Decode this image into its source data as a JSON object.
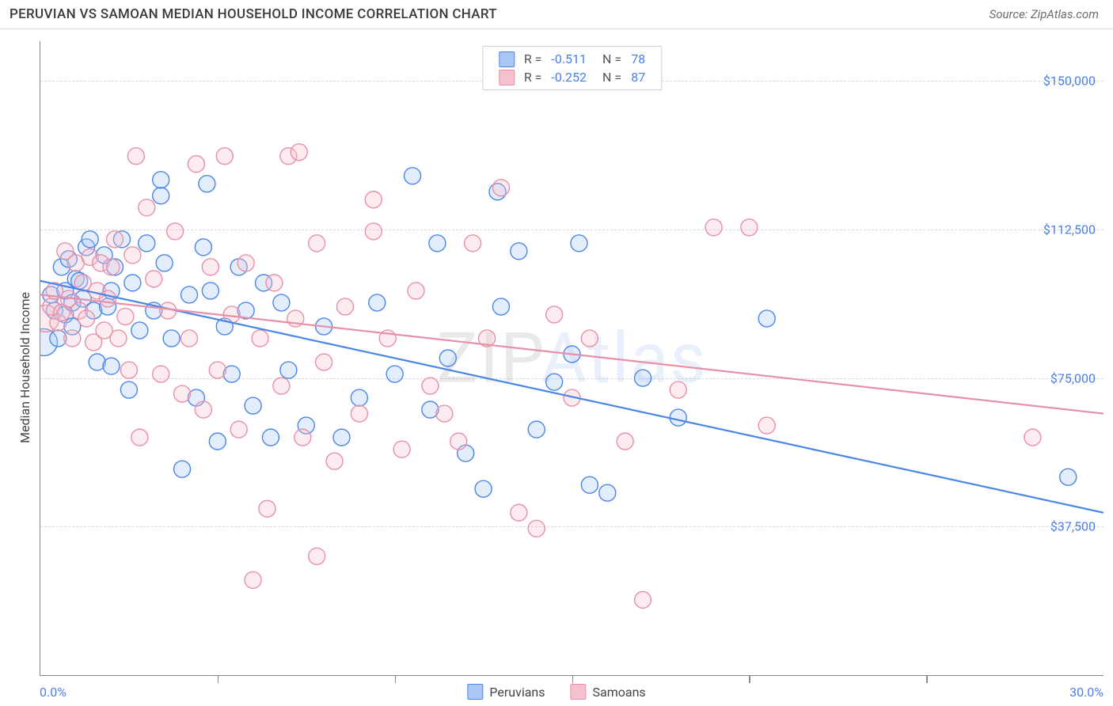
{
  "title": "PERUVIAN VS SAMOAN MEDIAN HOUSEHOLD INCOME CORRELATION CHART",
  "source": "Source: ZipAtlas.com",
  "watermark": {
    "parts": [
      "Z",
      "I",
      "P",
      "Atlas"
    ]
  },
  "chart": {
    "type": "scatter",
    "background_color": "#ffffff",
    "grid_color": "#d8d8d8",
    "axis_color": "#888888",
    "xlim": [
      0,
      30
    ],
    "ylim": [
      0,
      160000
    ],
    "ylabel": "Median Household Income",
    "ylabel_color": "#444444",
    "ylabel_fontsize": 16,
    "xtick_step": 5,
    "x_min_label": "0.0%",
    "x_max_label": "30.0%",
    "ytick_labels": [
      {
        "value": 37500,
        "label": "$37,500"
      },
      {
        "value": 75000,
        "label": "$75,000"
      },
      {
        "value": 112500,
        "label": "$112,500"
      },
      {
        "value": 150000,
        "label": "$150,000"
      }
    ],
    "tick_label_color": "#4a7fe8",
    "marker_radius": 10.5,
    "marker_radius_large": 17,
    "marker_stroke_width": 1.4,
    "marker_fill_opacity": 0.32,
    "line_width": 2.2,
    "series": [
      {
        "name": "Peruvians",
        "stroke": "#4a86e8",
        "fill": "#a9c6f5",
        "R": "-0.511",
        "N": "78",
        "regression": {
          "x1": 0,
          "y1": 99500,
          "x2": 30,
          "y2": 41000
        },
        "points": [
          [
            0.3,
            96000
          ],
          [
            0.4,
            92000
          ],
          [
            0.5,
            85000
          ],
          [
            0.6,
            103000
          ],
          [
            0.7,
            97000
          ],
          [
            0.7,
            91000
          ],
          [
            0.8,
            105000
          ],
          [
            0.9,
            94000
          ],
          [
            0.9,
            88000
          ],
          [
            1.0,
            100000
          ],
          [
            1.1,
            99500
          ],
          [
            1.2,
            95000
          ],
          [
            1.3,
            108000
          ],
          [
            1.4,
            110000
          ],
          [
            1.5,
            92000
          ],
          [
            1.6,
            79000
          ],
          [
            1.8,
            106000
          ],
          [
            1.9,
            93000
          ],
          [
            2.0,
            97000
          ],
          [
            2.1,
            103000
          ],
          [
            2.3,
            110000
          ],
          [
            2.0,
            78000
          ],
          [
            2.5,
            72000
          ],
          [
            2.6,
            99000
          ],
          [
            2.8,
            87000
          ],
          [
            3.0,
            109000
          ],
          [
            3.2,
            92000
          ],
          [
            3.4,
            121000
          ],
          [
            3.5,
            104000
          ],
          [
            3.7,
            85000
          ],
          [
            3.4,
            125000
          ],
          [
            4.7,
            124000
          ],
          [
            4.0,
            52000
          ],
          [
            4.2,
            96000
          ],
          [
            4.4,
            70000
          ],
          [
            4.6,
            108000
          ],
          [
            4.8,
            97000
          ],
          [
            5.0,
            59000
          ],
          [
            5.2,
            88000
          ],
          [
            5.4,
            76000
          ],
          [
            5.6,
            103000
          ],
          [
            5.8,
            92000
          ],
          [
            6.0,
            68000
          ],
          [
            6.3,
            99000
          ],
          [
            6.5,
            60000
          ],
          [
            6.8,
            94000
          ],
          [
            7.0,
            77000
          ],
          [
            7.5,
            63000
          ],
          [
            8.0,
            88000
          ],
          [
            8.5,
            60000
          ],
          [
            9.0,
            70000
          ],
          [
            9.5,
            94000
          ],
          [
            10.0,
            76000
          ],
          [
            10.5,
            126000
          ],
          [
            11.0,
            67000
          ],
          [
            11.5,
            80000
          ],
          [
            11.2,
            109000
          ],
          [
            12.0,
            56000
          ],
          [
            12.5,
            47000
          ],
          [
            13.0,
            93000
          ],
          [
            13.5,
            107000
          ],
          [
            12.9,
            122000
          ],
          [
            14.0,
            62000
          ],
          [
            14.5,
            74000
          ],
          [
            15.0,
            81000
          ],
          [
            15.2,
            109000
          ],
          [
            15.5,
            48000
          ],
          [
            16.0,
            46000
          ],
          [
            17.0,
            75000
          ],
          [
            18.0,
            65000
          ],
          [
            20.5,
            90000
          ],
          [
            29.0,
            50000
          ]
        ],
        "large_points": [
          [
            0.1,
            84000
          ]
        ]
      },
      {
        "name": "Samoans",
        "stroke": "#e890a8",
        "fill": "#f5c1ce",
        "R": "-0.252",
        "N": "87",
        "regression": {
          "x1": 0,
          "y1": 96000,
          "x2": 30,
          "y2": 66000
        },
        "points": [
          [
            0.3,
            93000
          ],
          [
            0.4,
            97000
          ],
          [
            0.5,
            89000
          ],
          [
            0.6,
            91500
          ],
          [
            0.7,
            107000
          ],
          [
            0.8,
            95000
          ],
          [
            0.9,
            85000
          ],
          [
            1.0,
            104000
          ],
          [
            1.1,
            92000
          ],
          [
            1.2,
            99000
          ],
          [
            1.3,
            90000
          ],
          [
            1.4,
            105500
          ],
          [
            1.5,
            84000
          ],
          [
            1.6,
            97000
          ],
          [
            1.7,
            104000
          ],
          [
            1.8,
            87000
          ],
          [
            1.9,
            95000
          ],
          [
            2.0,
            103000
          ],
          [
            2.1,
            110000
          ],
          [
            2.2,
            85000
          ],
          [
            2.4,
            90500
          ],
          [
            2.5,
            77000
          ],
          [
            2.6,
            106000
          ],
          [
            2.8,
            60000
          ],
          [
            3.0,
            118000
          ],
          [
            3.2,
            100000
          ],
          [
            3.4,
            76000
          ],
          [
            2.7,
            131000
          ],
          [
            3.6,
            92000
          ],
          [
            3.8,
            112000
          ],
          [
            4.0,
            71000
          ],
          [
            4.2,
            85000
          ],
          [
            4.4,
            129000
          ],
          [
            4.6,
            67000
          ],
          [
            4.8,
            103000
          ],
          [
            5.0,
            77000
          ],
          [
            5.2,
            131000
          ],
          [
            5.4,
            91000
          ],
          [
            5.6,
            62000
          ],
          [
            5.8,
            104000
          ],
          [
            6.0,
            24000
          ],
          [
            6.2,
            85000
          ],
          [
            6.4,
            42000
          ],
          [
            6.6,
            99000
          ],
          [
            6.8,
            73000
          ],
          [
            7.0,
            131000
          ],
          [
            7.3,
            132000
          ],
          [
            7.2,
            90000
          ],
          [
            7.4,
            60000
          ],
          [
            7.8,
            109000
          ],
          [
            7.8,
            30000
          ],
          [
            8.0,
            79000
          ],
          [
            8.3,
            54000
          ],
          [
            8.6,
            93000
          ],
          [
            9.0,
            66000
          ],
          [
            9.4,
            112000
          ],
          [
            9.4,
            120000
          ],
          [
            9.8,
            85000
          ],
          [
            10.2,
            57000
          ],
          [
            10.6,
            97000
          ],
          [
            11.0,
            73000
          ],
          [
            11.4,
            66000
          ],
          [
            11.8,
            59000
          ],
          [
            12.2,
            109000
          ],
          [
            12.6,
            85000
          ],
          [
            13.0,
            123000
          ],
          [
            13.5,
            41000
          ],
          [
            14.0,
            37000
          ],
          [
            14.5,
            91000
          ],
          [
            15.0,
            70000
          ],
          [
            15.5,
            85000
          ],
          [
            16.5,
            59000
          ],
          [
            17.0,
            19000
          ],
          [
            18.0,
            72000
          ],
          [
            19.0,
            113000
          ],
          [
            20.0,
            113000
          ],
          [
            20.5,
            63000
          ],
          [
            28.0,
            60000
          ]
        ],
        "large_points": [
          [
            0.15,
            90000
          ]
        ]
      }
    ],
    "legend_top": {
      "r_prefix": "R =",
      "n_prefix": "N ="
    },
    "legend_bottom": [
      {
        "label": "Peruvians",
        "stroke": "#4a86e8",
        "fill": "#a9c6f5"
      },
      {
        "label": "Samoans",
        "stroke": "#e890a8",
        "fill": "#f5c1ce"
      }
    ]
  }
}
